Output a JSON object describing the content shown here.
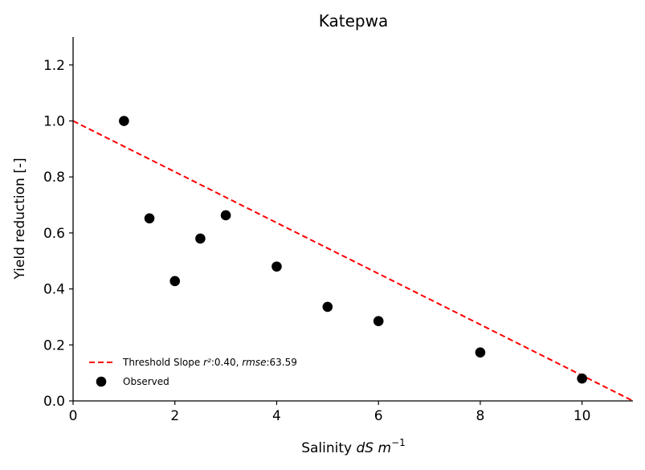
{
  "chart_data": {
    "type": "scatter",
    "title": "Katepwa",
    "xlabel": {
      "prefix": "Salinity ",
      "var": "dS m",
      "sup": "−1"
    },
    "ylabel": "Yield reduction [-]",
    "xlim": [
      0,
      11
    ],
    "ylim": [
      0,
      1.3
    ],
    "xticks": [
      0,
      2,
      4,
      6,
      8,
      10
    ],
    "yticks": [
      0.0,
      0.2,
      0.4,
      0.6,
      0.8,
      1.0,
      1.2
    ],
    "xtick_labels": [
      "0",
      "2",
      "4",
      "6",
      "8",
      "10"
    ],
    "ytick_labels": [
      "0.0",
      "0.2",
      "0.4",
      "0.6",
      "0.8",
      "1.0",
      "1.2"
    ],
    "series": [
      {
        "name": "Observed",
        "kind": "scatter",
        "color": "#000000",
        "x": [
          1,
          1.5,
          2,
          2.5,
          3,
          4,
          5,
          6,
          8,
          10
        ],
        "y": [
          1.0,
          0.652,
          0.428,
          0.58,
          0.663,
          0.48,
          0.336,
          0.285,
          0.173,
          0.08
        ]
      },
      {
        "name": "Threshold Slope",
        "kind": "line",
        "style": "dashed",
        "color": "#ff0000",
        "x": [
          0,
          11
        ],
        "y": [
          1.0,
          0.0
        ]
      }
    ],
    "legend": {
      "placement": "lower-left",
      "line_entry": {
        "name": "Threshold Slope",
        "r2_label": "r²",
        "r2_value": ":0.40, ",
        "rmse_label": "rmse",
        "rmse_value": ":63.59"
      },
      "point_entry": "Observed"
    },
    "grid": false
  }
}
